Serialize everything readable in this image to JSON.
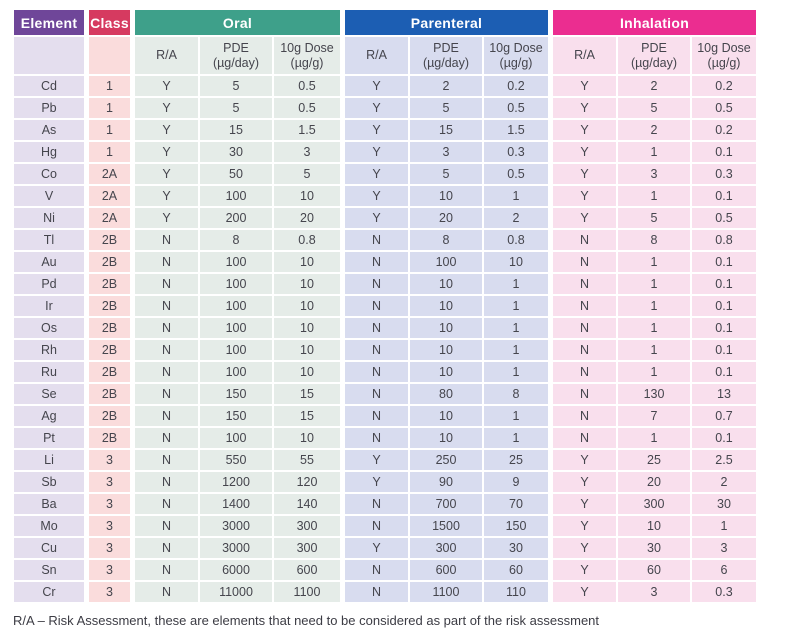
{
  "table": {
    "columns": {
      "element": "Element",
      "class": "Class"
    },
    "groups": [
      {
        "label": "Oral",
        "key": "oral"
      },
      {
        "label": "Parenteral",
        "key": "parenteral"
      },
      {
        "label": "Inhalation",
        "key": "inhalation"
      }
    ],
    "sub": {
      "ra": "R/A",
      "pde": "PDE\n(µg/day)",
      "dose": "10g Dose\n(µg/g)"
    },
    "rows": [
      {
        "element": "Cd",
        "class": "1",
        "oral": [
          "Y",
          "5",
          "0.5"
        ],
        "parenteral": [
          "Y",
          "2",
          "0.2"
        ],
        "inhalation": [
          "Y",
          "2",
          "0.2"
        ]
      },
      {
        "element": "Pb",
        "class": "1",
        "oral": [
          "Y",
          "5",
          "0.5"
        ],
        "parenteral": [
          "Y",
          "5",
          "0.5"
        ],
        "inhalation": [
          "Y",
          "5",
          "0.5"
        ]
      },
      {
        "element": "As",
        "class": "1",
        "oral": [
          "Y",
          "15",
          "1.5"
        ],
        "parenteral": [
          "Y",
          "15",
          "1.5"
        ],
        "inhalation": [
          "Y",
          "2",
          "0.2"
        ]
      },
      {
        "element": "Hg",
        "class": "1",
        "oral": [
          "Y",
          "30",
          "3"
        ],
        "parenteral": [
          "Y",
          "3",
          "0.3"
        ],
        "inhalation": [
          "Y",
          "1",
          "0.1"
        ]
      },
      {
        "element": "Co",
        "class": "2A",
        "oral": [
          "Y",
          "50",
          "5"
        ],
        "parenteral": [
          "Y",
          "5",
          "0.5"
        ],
        "inhalation": [
          "Y",
          "3",
          "0.3"
        ]
      },
      {
        "element": "V",
        "class": "2A",
        "oral": [
          "Y",
          "100",
          "10"
        ],
        "parenteral": [
          "Y",
          "10",
          "1"
        ],
        "inhalation": [
          "Y",
          "1",
          "0.1"
        ]
      },
      {
        "element": "Ni",
        "class": "2A",
        "oral": [
          "Y",
          "200",
          "20"
        ],
        "parenteral": [
          "Y",
          "20",
          "2"
        ],
        "inhalation": [
          "Y",
          "5",
          "0.5"
        ]
      },
      {
        "element": "Tl",
        "class": "2B",
        "oral": [
          "N",
          "8",
          "0.8"
        ],
        "parenteral": [
          "N",
          "8",
          "0.8"
        ],
        "inhalation": [
          "N",
          "8",
          "0.8"
        ]
      },
      {
        "element": "Au",
        "class": "2B",
        "oral": [
          "N",
          "100",
          "10"
        ],
        "parenteral": [
          "N",
          "100",
          "10"
        ],
        "inhalation": [
          "N",
          "1",
          "0.1"
        ]
      },
      {
        "element": "Pd",
        "class": "2B",
        "oral": [
          "N",
          "100",
          "10"
        ],
        "parenteral": [
          "N",
          "10",
          "1"
        ],
        "inhalation": [
          "N",
          "1",
          "0.1"
        ]
      },
      {
        "element": "Ir",
        "class": "2B",
        "oral": [
          "N",
          "100",
          "10"
        ],
        "parenteral": [
          "N",
          "10",
          "1"
        ],
        "inhalation": [
          "N",
          "1",
          "0.1"
        ]
      },
      {
        "element": "Os",
        "class": "2B",
        "oral": [
          "N",
          "100",
          "10"
        ],
        "parenteral": [
          "N",
          "10",
          "1"
        ],
        "inhalation": [
          "N",
          "1",
          "0.1"
        ]
      },
      {
        "element": "Rh",
        "class": "2B",
        "oral": [
          "N",
          "100",
          "10"
        ],
        "parenteral": [
          "N",
          "10",
          "1"
        ],
        "inhalation": [
          "N",
          "1",
          "0.1"
        ]
      },
      {
        "element": "Ru",
        "class": "2B",
        "oral": [
          "N",
          "100",
          "10"
        ],
        "parenteral": [
          "N",
          "10",
          "1"
        ],
        "inhalation": [
          "N",
          "1",
          "0.1"
        ]
      },
      {
        "element": "Se",
        "class": "2B",
        "oral": [
          "N",
          "150",
          "15"
        ],
        "parenteral": [
          "N",
          "80",
          "8"
        ],
        "inhalation": [
          "N",
          "130",
          "13"
        ]
      },
      {
        "element": "Ag",
        "class": "2B",
        "oral": [
          "N",
          "150",
          "15"
        ],
        "parenteral": [
          "N",
          "10",
          "1"
        ],
        "inhalation": [
          "N",
          "7",
          "0.7"
        ]
      },
      {
        "element": "Pt",
        "class": "2B",
        "oral": [
          "N",
          "100",
          "10"
        ],
        "parenteral": [
          "N",
          "10",
          "1"
        ],
        "inhalation": [
          "N",
          "1",
          "0.1"
        ]
      },
      {
        "element": "Li",
        "class": "3",
        "oral": [
          "N",
          "550",
          "55"
        ],
        "parenteral": [
          "Y",
          "250",
          "25"
        ],
        "inhalation": [
          "Y",
          "25",
          "2.5"
        ]
      },
      {
        "element": "Sb",
        "class": "3",
        "oral": [
          "N",
          "1200",
          "120"
        ],
        "parenteral": [
          "Y",
          "90",
          "9"
        ],
        "inhalation": [
          "Y",
          "20",
          "2"
        ]
      },
      {
        "element": "Ba",
        "class": "3",
        "oral": [
          "N",
          "1400",
          "140"
        ],
        "parenteral": [
          "N",
          "700",
          "70"
        ],
        "inhalation": [
          "Y",
          "300",
          "30"
        ]
      },
      {
        "element": "Mo",
        "class": "3",
        "oral": [
          "N",
          "3000",
          "300"
        ],
        "parenteral": [
          "N",
          "1500",
          "150"
        ],
        "inhalation": [
          "Y",
          "10",
          "1"
        ]
      },
      {
        "element": "Cu",
        "class": "3",
        "oral": [
          "N",
          "3000",
          "300"
        ],
        "parenteral": [
          "Y",
          "300",
          "30"
        ],
        "inhalation": [
          "Y",
          "30",
          "3"
        ]
      },
      {
        "element": "Sn",
        "class": "3",
        "oral": [
          "N",
          "6000",
          "600"
        ],
        "parenteral": [
          "N",
          "600",
          "60"
        ],
        "inhalation": [
          "Y",
          "60",
          "6"
        ]
      },
      {
        "element": "Cr",
        "class": "3",
        "oral": [
          "N",
          "11000",
          "1100"
        ],
        "parenteral": [
          "N",
          "1100",
          "110"
        ],
        "inhalation": [
          "Y",
          "3",
          "0.3"
        ]
      }
    ]
  },
  "footer": {
    "note": "R/A – Risk Assessment, these are elements that need to be considered as part of the risk assessment"
  },
  "colors": {
    "header_element": "#6f4699",
    "header_class": "#d63a60",
    "header_oral": "#3ea08a",
    "header_parenteral": "#1c5eb3",
    "header_inhalation": "#eb2d90",
    "cell_element_bg": "#e4deee",
    "cell_class_bg": "#fadcdc",
    "cell_oral_bg": "#e5ece8",
    "cell_parenteral_bg": "#d8dcef",
    "cell_inhalation_bg": "#f9dfed",
    "body_text": "#45454d"
  }
}
